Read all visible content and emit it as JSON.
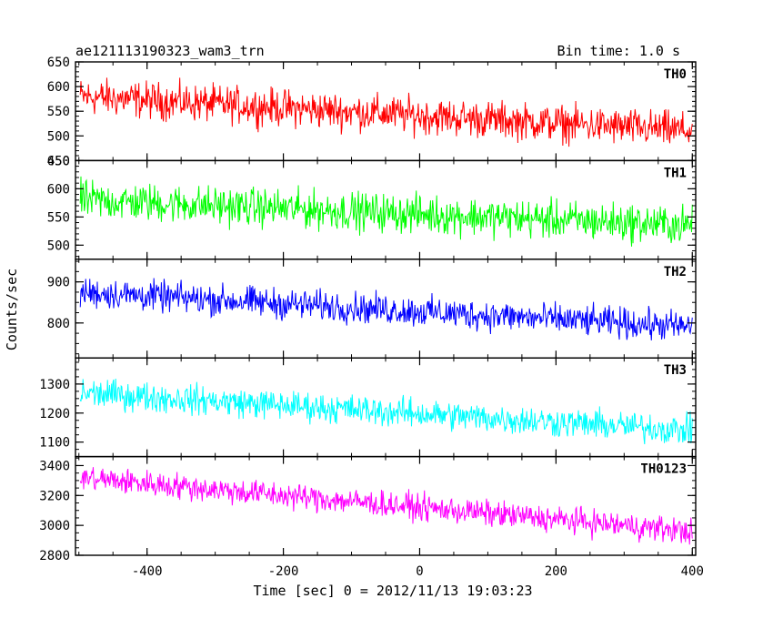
{
  "header": {
    "title": "ae121113190323_wam3_trn",
    "bin_time": "Bin time: 1.0 s"
  },
  "axes": {
    "xlabel": "Time [sec] 0 = 2012/11/13 19:03:23",
    "ylabel": "Counts/sec"
  },
  "chart_data": {
    "type": "line",
    "title": "ae121113190323_wam3_trn",
    "subtitle": "Bin time: 1.0 s",
    "xlabel": "Time [sec] 0 = 2012/11/13 19:03:23",
    "ylabel": "Counts/sec",
    "xlim": [
      -505,
      405
    ],
    "x_ticks": [
      -400,
      -200,
      0,
      200,
      400
    ],
    "x_range": [
      -498,
      400
    ],
    "grid": false,
    "panels": [
      {
        "name": "TH0",
        "color": "#ff0000",
        "ylim": [
          450,
          650
        ],
        "y_ticks": [
          450,
          500,
          550,
          600,
          650
        ],
        "trend_start": 580,
        "trend_end": 510,
        "noise_amplitude": 55
      },
      {
        "name": "TH1",
        "color": "#00ff00",
        "ylim": [
          475,
          650
        ],
        "y_ticks": [
          500,
          550,
          600,
          650
        ],
        "trend_start": 580,
        "trend_end": 535,
        "noise_amplitude": 50
      },
      {
        "name": "TH2",
        "color": "#0000ff",
        "ylim": [
          715,
          955
        ],
        "y_ticks": [
          800,
          900
        ],
        "trend_start": 875,
        "trend_end": 790,
        "noise_amplitude": 55
      },
      {
        "name": "TH3",
        "color": "#00ffff",
        "ylim": [
          1050,
          1390
        ],
        "y_ticks": [
          1100,
          1200,
          1300
        ],
        "trend_start": 1270,
        "trend_end": 1140,
        "noise_amplitude": 75
      },
      {
        "name": "TH0123",
        "color": "#ff00ff",
        "ylim": [
          2800,
          3460
        ],
        "y_ticks": [
          2800,
          3000,
          3200,
          3400
        ],
        "trend_start": 3320,
        "trend_end": 2960,
        "noise_amplitude": 130
      }
    ]
  }
}
